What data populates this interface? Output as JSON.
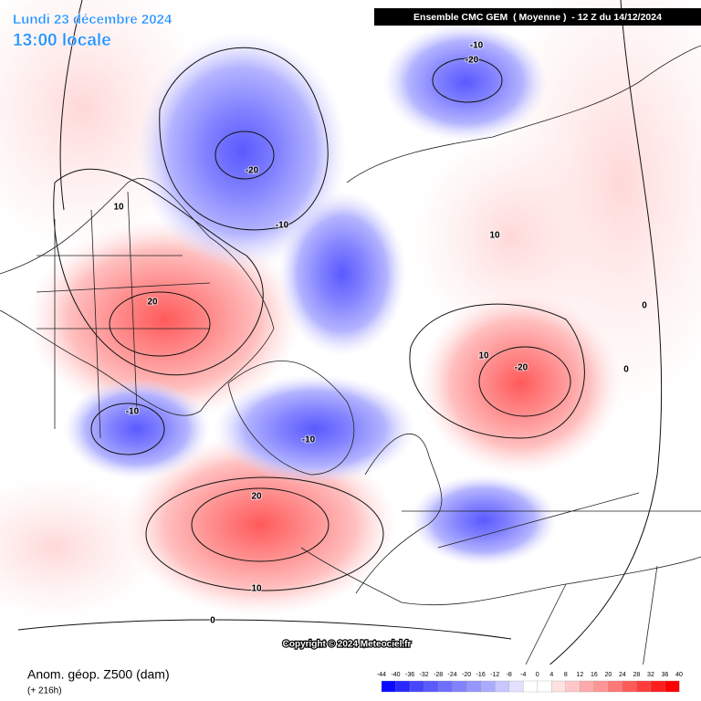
{
  "header": {
    "date": "Lundi 23 décembre 2024",
    "time": "13:00 locale",
    "model": "Ensemble CMC GEM  ( Moyenne )  - 12 Z du 14/12/2024"
  },
  "footer": {
    "title": "Anom. géop. Z500 (dam)",
    "lead": "(+ 216h)",
    "copyright": "Copyright © 2024 Meteociel.fr"
  },
  "contour_labels": [
    -10,
    -20,
    -20,
    10,
    -10,
    10,
    20,
    0,
    10,
    -20,
    0,
    -10,
    -10,
    20,
    10,
    0
  ],
  "colorbar": {
    "ticks": [
      -44,
      -40,
      -36,
      -32,
      -28,
      -24,
      -20,
      -16,
      -12,
      -8,
      -4,
      0,
      4,
      8,
      12,
      16,
      20,
      24,
      28,
      32,
      36,
      40
    ],
    "colors": [
      "#0a0aff",
      "#2828ff",
      "#4646ff",
      "#5a5aff",
      "#6e6eff",
      "#8282ff",
      "#9696ff",
      "#aaaaff",
      "#c8c8ff",
      "#e1e1ff",
      "#ffffff",
      "#ffffff",
      "#ffe1e1",
      "#ffc8c8",
      "#ffaaaa",
      "#ff9696",
      "#ff7878",
      "#ff5a5a",
      "#ff3c3c",
      "#ff1e1e",
      "#ff0000"
    ]
  }
}
